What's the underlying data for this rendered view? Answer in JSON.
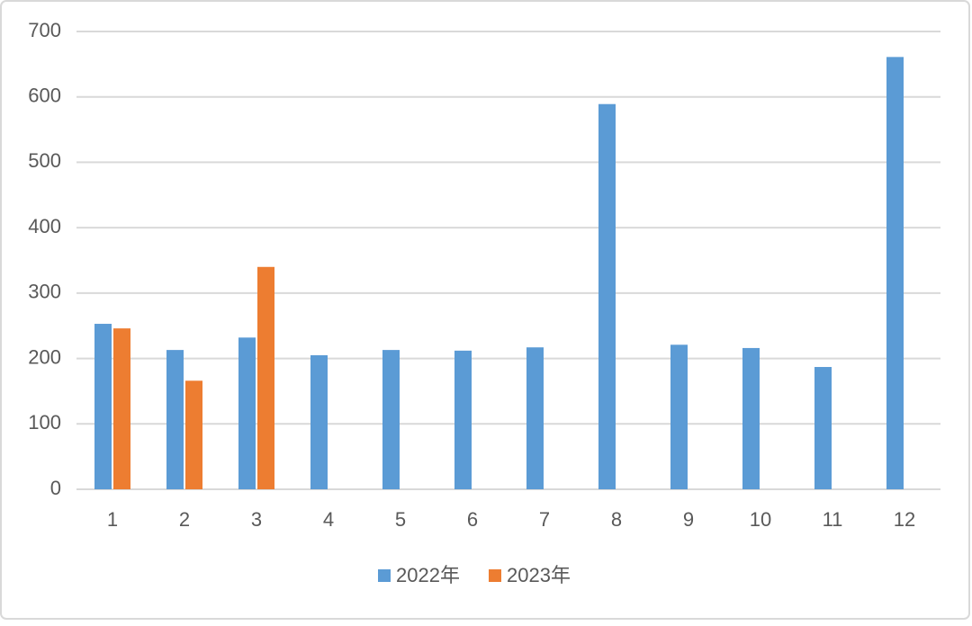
{
  "chart_data": {
    "type": "bar",
    "categories": [
      "1",
      "2",
      "3",
      "4",
      "5",
      "6",
      "7",
      "8",
      "9",
      "10",
      "11",
      "12"
    ],
    "series": [
      {
        "name": "2022年",
        "color": "#5b9bd5",
        "values": [
          253,
          213,
          232,
          205,
          213,
          212,
          217,
          589,
          221,
          216,
          187,
          661
        ]
      },
      {
        "name": "2023年",
        "color": "#ed7d31",
        "values": [
          246,
          166,
          340,
          null,
          null,
          null,
          null,
          null,
          null,
          null,
          null,
          null
        ]
      }
    ],
    "ylim": [
      0,
      700
    ],
    "yticks": [
      0,
      100,
      200,
      300,
      400,
      500,
      600,
      700
    ],
    "grid": true,
    "legend": "bottom"
  }
}
